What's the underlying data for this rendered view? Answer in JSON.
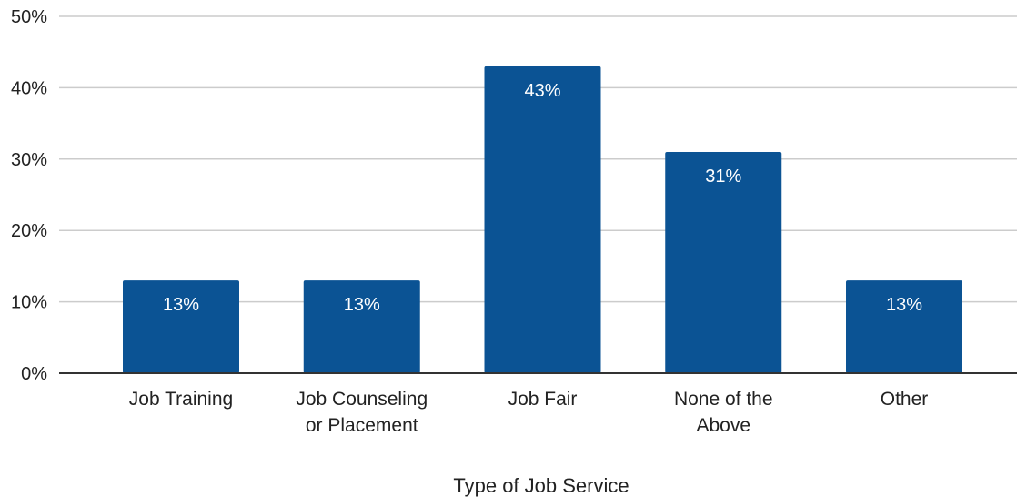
{
  "chart_data": {
    "type": "bar",
    "title": "",
    "xlabel": "Type of Job Service",
    "ylabel": "",
    "categories": [
      [
        "Job Training"
      ],
      [
        "Job Counseling",
        "or Placement"
      ],
      [
        "Job Fair"
      ],
      [
        "None of the",
        "Above"
      ],
      [
        "Other"
      ]
    ],
    "values": [
      13,
      13,
      43,
      31,
      13
    ],
    "data_labels": [
      "13%",
      "13%",
      "43%",
      "31%",
      "13%"
    ],
    "ylim": [
      0,
      50
    ],
    "yticks": [
      0,
      10,
      20,
      30,
      40,
      50
    ],
    "ytick_labels": [
      "0%",
      "10%",
      "20%",
      "30%",
      "40%",
      "50%"
    ],
    "grid": true,
    "legend": "none",
    "colors": {
      "bar": "#0b5394",
      "grid": "#cccccc",
      "axis": "#333333"
    }
  }
}
